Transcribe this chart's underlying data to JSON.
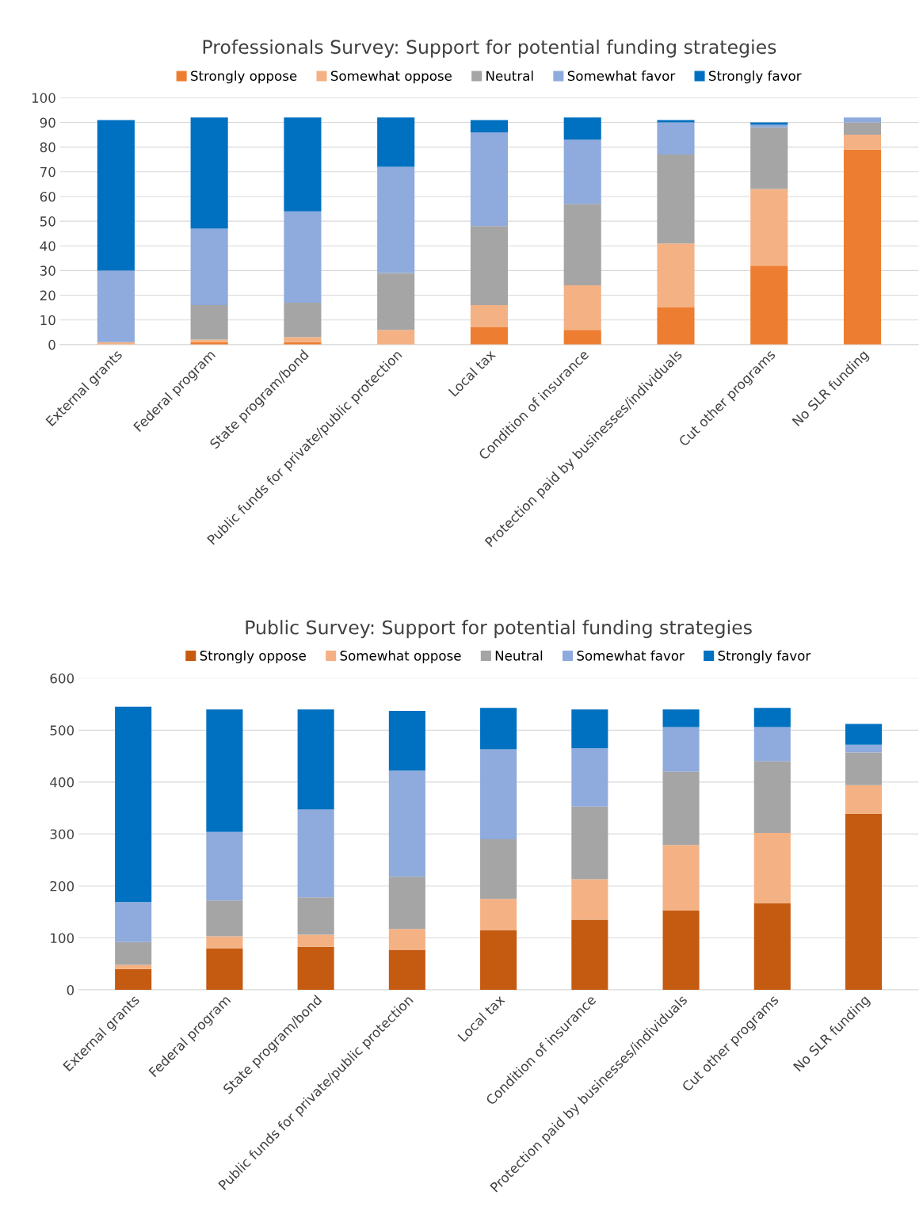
{
  "chart_data": [
    {
      "type": "bar",
      "stacked": true,
      "title": "Professionals Survey: Support for potential funding strategies",
      "categories": [
        "External grants",
        "Federal program",
        "State program/bond",
        "Public funds for private/public protection",
        "Local tax",
        "Condition of insurance",
        "Protection paid by businesses/individuals",
        "Cut other programs",
        "No SLR funding"
      ],
      "series": [
        {
          "name": "Strongly oppose",
          "color": "#ed7d31",
          "values": [
            0,
            1,
            1,
            0,
            7,
            6,
            15,
            32,
            79
          ]
        },
        {
          "name": "Somewhat oppose",
          "color": "#f4b183",
          "values": [
            1,
            1,
            2,
            6,
            9,
            18,
            26,
            31,
            6
          ]
        },
        {
          "name": "Neutral",
          "color": "#a5a5a5",
          "values": [
            0,
            14,
            14,
            23,
            32,
            33,
            36,
            25,
            5
          ]
        },
        {
          "name": "Somewhat favor",
          "color": "#8faadc",
          "values": [
            29,
            31,
            37,
            43,
            38,
            26,
            13,
            1,
            2
          ]
        },
        {
          "name": "Strongly favor",
          "color": "#0070c0",
          "values": [
            61,
            45,
            38,
            20,
            5,
            9,
            1,
            1,
            0
          ]
        }
      ],
      "ylim": [
        0,
        100
      ],
      "yticks": [
        0,
        10,
        20,
        30,
        40,
        50,
        60,
        70,
        80,
        90,
        100
      ],
      "grid": "y",
      "legend": "top"
    },
    {
      "type": "bar",
      "stacked": true,
      "title": "Public Survey: Support for potential funding strategies",
      "categories": [
        "External grants",
        "Federal program",
        "State program/bond",
        "Public funds for private/public protection",
        "Local tax",
        "Condition of insurance",
        "Protection paid by businesses/individuals",
        "Cut other programs",
        "No SLR funding"
      ],
      "series": [
        {
          "name": "Strongly oppose",
          "color": "#c55a11",
          "values": [
            40,
            80,
            83,
            77,
            115,
            135,
            153,
            167,
            339
          ]
        },
        {
          "name": "Somewhat oppose",
          "color": "#f4b183",
          "values": [
            8,
            23,
            23,
            40,
            60,
            78,
            126,
            135,
            55
          ]
        },
        {
          "name": "Neutral",
          "color": "#a5a5a5",
          "values": [
            44,
            69,
            72,
            101,
            115,
            140,
            141,
            138,
            63
          ]
        },
        {
          "name": "Somewhat favor",
          "color": "#8faadc",
          "values": [
            77,
            132,
            169,
            204,
            173,
            112,
            86,
            66,
            15
          ]
        },
        {
          "name": "Strongly favor",
          "color": "#0070c0",
          "values": [
            376,
            236,
            193,
            115,
            80,
            75,
            34,
            37,
            40
          ]
        }
      ],
      "ylim": [
        0,
        600
      ],
      "yticks": [
        0,
        100,
        200,
        300,
        400,
        500,
        600
      ],
      "grid": "y",
      "legend": "top"
    }
  ]
}
